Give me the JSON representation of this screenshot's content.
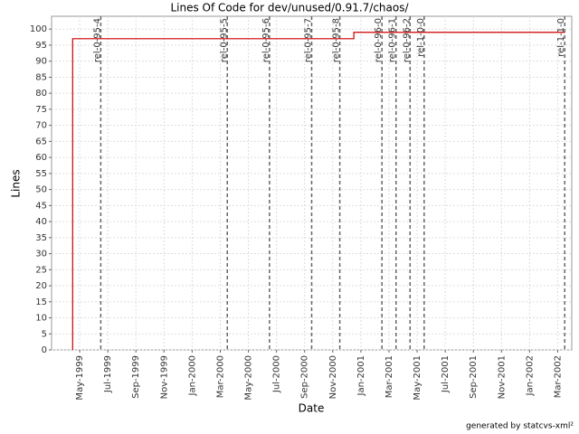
{
  "chart_data": {
    "type": "line",
    "title": "Lines Of Code for dev/unused/0.91.7/chaos/",
    "x_label": "Date",
    "y_label": "Lines",
    "footer": "generated by statcvs-xml²",
    "series": [
      {
        "name": "Lines",
        "color": "#cc0000",
        "x": [
          "1999-04",
          "1999-04",
          "2000-12",
          "2000-12",
          "2002-03"
        ],
        "values": [
          0,
          97,
          97,
          99,
          99
        ]
      }
    ],
    "markers": [
      {
        "label": "rel-0-95-4",
        "x": "1999-06"
      },
      {
        "label": "rel-0-95-5",
        "x": "2000-03"
      },
      {
        "label": "rel-0-95-6",
        "x": "2000-06"
      },
      {
        "label": "rel-0-95-7",
        "x": "2000-09"
      },
      {
        "label": "rel-0-95-8",
        "x": "2000-11"
      },
      {
        "label": "rel-0-96-0",
        "x": "2001-02"
      },
      {
        "label": "rel-0-96-1",
        "x": "2001-03"
      },
      {
        "label": "rel-0-96-2",
        "x": "2001-04"
      },
      {
        "label": "rel-1-0-0",
        "x": "2001-05"
      },
      {
        "label": "rel-1-1-0",
        "x": "2002-03"
      }
    ],
    "xlim": [
      "1999-03",
      "2002-04"
    ],
    "xticks": [
      {
        "value": "1999-05",
        "label": "May-1999"
      },
      {
        "value": "1999-07",
        "label": "Jul-1999"
      },
      {
        "value": "1999-09",
        "label": "Sep-1999"
      },
      {
        "value": "1999-11",
        "label": "Nov-1999"
      },
      {
        "value": "2000-01",
        "label": "Jan-2000"
      },
      {
        "value": "2000-03",
        "label": "Mar-2000"
      },
      {
        "value": "2000-05",
        "label": "May-2000"
      },
      {
        "value": "2000-07",
        "label": "Jul-2000"
      },
      {
        "value": "2000-09",
        "label": "Sep-2000"
      },
      {
        "value": "2000-11",
        "label": "Nov-2000"
      },
      {
        "value": "2001-01",
        "label": "Jan-2001"
      },
      {
        "value": "2001-03",
        "label": "Mar-2001"
      },
      {
        "value": "2001-05",
        "label": "May-2001"
      },
      {
        "value": "2001-07",
        "label": "Jul-2001"
      },
      {
        "value": "2001-09",
        "label": "Sep-2001"
      },
      {
        "value": "2001-11",
        "label": "Nov-2001"
      },
      {
        "value": "2002-01",
        "label": "Jan-2002"
      },
      {
        "value": "2002-03",
        "label": "Mar-2002"
      }
    ],
    "ylim": [
      0,
      104
    ],
    "yticks": [
      0,
      5,
      10,
      15,
      20,
      25,
      30,
      35,
      40,
      45,
      50,
      55,
      60,
      65,
      70,
      75,
      80,
      85,
      90,
      95,
      100
    ],
    "grid": true
  }
}
